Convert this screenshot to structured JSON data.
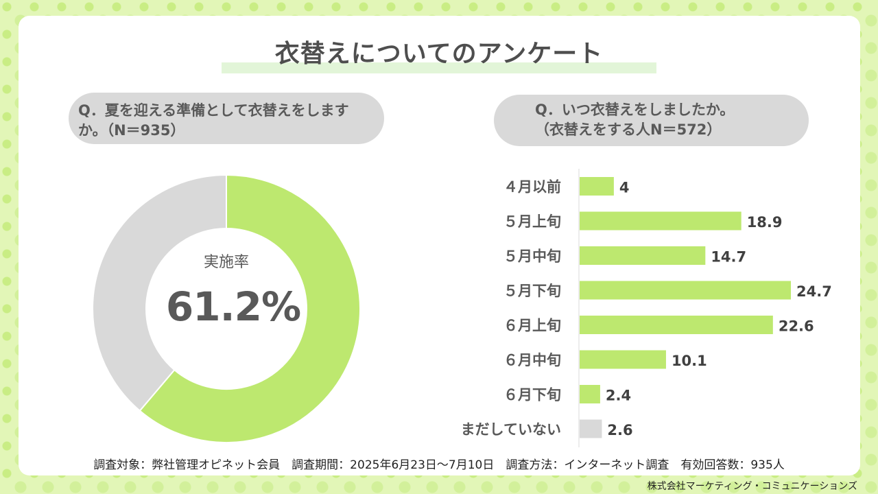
{
  "title": "衣替えについてのアンケート",
  "q1": "Q．夏を迎える準備として衣替えをしますか。（N＝935）",
  "q2": "Q．いつ衣替えをしましたか。\n（衣替えをする人N＝572）",
  "colors": {
    "accent": "#bde86f",
    "gray": "#d9d9d9",
    "text": "#595959"
  },
  "footer_note": "調査対象：弊社管理オピネット会員　調査期間：2025年6月23日～7月10日　調査方法：インターネット調査　有効回答数：935人",
  "company": "株式会社マーケティング・コミュニケーションズ",
  "chart_data": [
    {
      "type": "pie",
      "center_label": "実施率",
      "center_value": "61.2%",
      "slices": [
        {
          "value": 61.2,
          "color": "#bde86f"
        },
        {
          "value": 38.8,
          "color": "#d9d9d9"
        }
      ]
    },
    {
      "type": "bar",
      "orientation": "horizontal",
      "categories": [
        "４月以前",
        "５月上旬",
        "５月中旬",
        "５月下旬",
        "６月上旬",
        "６月中旬",
        "６月下旬",
        "まだしていない"
      ],
      "values": [
        4,
        18.9,
        14.7,
        24.7,
        22.6,
        10.1,
        2.4,
        2.6
      ],
      "labels": [
        "4",
        "18.9",
        "14.7",
        "24.7",
        "22.6",
        "10.1",
        "2.4",
        "2.6"
      ],
      "colors": [
        "#bde86f",
        "#bde86f",
        "#bde86f",
        "#bde86f",
        "#bde86f",
        "#bde86f",
        "#bde86f",
        "#d9d9d9"
      ],
      "xlim": [
        0,
        25.5
      ]
    }
  ]
}
